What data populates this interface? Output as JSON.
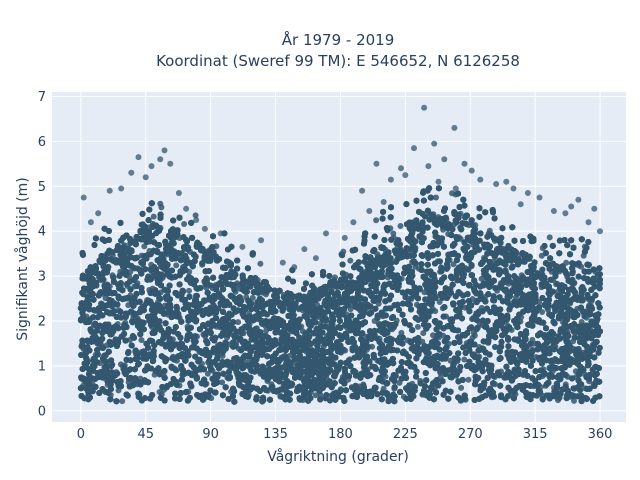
{
  "chart_data": {
    "type": "scatter",
    "title": [
      "År 1979 - 2019",
      "Koordinat (Sweref 99 TM): E 546652, N 6126258"
    ],
    "xlabel": "Vågriktning (grader)",
    "ylabel": "Signifikant våghöjd (m)",
    "xlim": [
      -20,
      378
    ],
    "ylim": [
      -0.25,
      7.1
    ],
    "xticks": [
      0,
      45,
      90,
      135,
      180,
      225,
      270,
      315,
      360
    ],
    "yticks": [
      0,
      1,
      2,
      3,
      4,
      5,
      6,
      7
    ],
    "grid": true,
    "legend": "none",
    "marker_color": "#34576e",
    "plot_bg": "#e5ecf6",
    "n_points_shown": 20000,
    "density_envelope": {
      "x": [
        0,
        15,
        30,
        45,
        60,
        75,
        90,
        105,
        120,
        135,
        150,
        165,
        180,
        195,
        210,
        225,
        240,
        255,
        270,
        285,
        300,
        315,
        330,
        345,
        360
      ],
      "upper": [
        3.0,
        3.5,
        3.9,
        4.2,
        4.1,
        3.9,
        3.6,
        3.3,
        3.0,
        2.7,
        2.6,
        2.7,
        3.0,
        3.4,
        3.9,
        4.2,
        4.4,
        4.5,
        4.3,
        4.0,
        3.6,
        3.4,
        3.3,
        3.3,
        3.2
      ],
      "lower": [
        0.2,
        0.2,
        0.2,
        0.2,
        0.2,
        0.2,
        0.2,
        0.2,
        0.2,
        0.2,
        0.2,
        0.2,
        0.2,
        0.2,
        0.2,
        0.2,
        0.2,
        0.2,
        0.2,
        0.2,
        0.2,
        0.2,
        0.2,
        0.2,
        0.2
      ]
    },
    "outliers": [
      {
        "x": 238,
        "y": 6.75
      },
      {
        "x": 259,
        "y": 6.3
      },
      {
        "x": 245,
        "y": 5.95
      },
      {
        "x": 231,
        "y": 5.85
      },
      {
        "x": 58,
        "y": 5.8
      },
      {
        "x": 55,
        "y": 5.6
      },
      {
        "x": 40,
        "y": 5.65
      },
      {
        "x": 62,
        "y": 5.5
      },
      {
        "x": 49,
        "y": 5.45
      },
      {
        "x": 252,
        "y": 5.6
      },
      {
        "x": 266,
        "y": 5.5
      },
      {
        "x": 222,
        "y": 5.4
      },
      {
        "x": 205,
        "y": 5.5
      },
      {
        "x": 241,
        "y": 5.45
      },
      {
        "x": 271,
        "y": 5.35
      },
      {
        "x": 35,
        "y": 5.3
      },
      {
        "x": 45,
        "y": 5.2
      },
      {
        "x": 28,
        "y": 4.95
      },
      {
        "x": 20,
        "y": 4.9
      },
      {
        "x": 2,
        "y": 4.75
      },
      {
        "x": 68,
        "y": 4.85
      },
      {
        "x": 225,
        "y": 5.25
      },
      {
        "x": 215,
        "y": 5.15
      },
      {
        "x": 195,
        "y": 4.9
      },
      {
        "x": 277,
        "y": 5.15
      },
      {
        "x": 288,
        "y": 5.05
      },
      {
        "x": 295,
        "y": 5.1
      },
      {
        "x": 300,
        "y": 4.95
      },
      {
        "x": 310,
        "y": 4.85
      },
      {
        "x": 318,
        "y": 4.75
      },
      {
        "x": 345,
        "y": 4.7
      },
      {
        "x": 356,
        "y": 4.5
      },
      {
        "x": 336,
        "y": 4.4
      },
      {
        "x": 328,
        "y": 4.45
      },
      {
        "x": 260,
        "y": 4.95
      },
      {
        "x": 248,
        "y": 5.1
      },
      {
        "x": 170,
        "y": 3.95
      },
      {
        "x": 155,
        "y": 3.6
      },
      {
        "x": 125,
        "y": 3.8
      },
      {
        "x": 112,
        "y": 3.65
      },
      {
        "x": 97,
        "y": 3.95
      },
      {
        "x": 183,
        "y": 3.85
      },
      {
        "x": 140,
        "y": 3.3
      },
      {
        "x": 163,
        "y": 3.4
      },
      {
        "x": 148,
        "y": 3.2
      },
      {
        "x": 7,
        "y": 4.2
      },
      {
        "x": 12,
        "y": 4.4
      },
      {
        "x": 352,
        "y": 4.2
      },
      {
        "x": 360,
        "y": 4.0
      },
      {
        "x": 305,
        "y": 4.6
      },
      {
        "x": 340,
        "y": 4.55
      },
      {
        "x": 73,
        "y": 4.5
      },
      {
        "x": 80,
        "y": 4.25
      },
      {
        "x": 86,
        "y": 4.05
      },
      {
        "x": 210,
        "y": 4.65
      },
      {
        "x": 200,
        "y": 4.45
      },
      {
        "x": 189,
        "y": 4.2
      }
    ]
  }
}
